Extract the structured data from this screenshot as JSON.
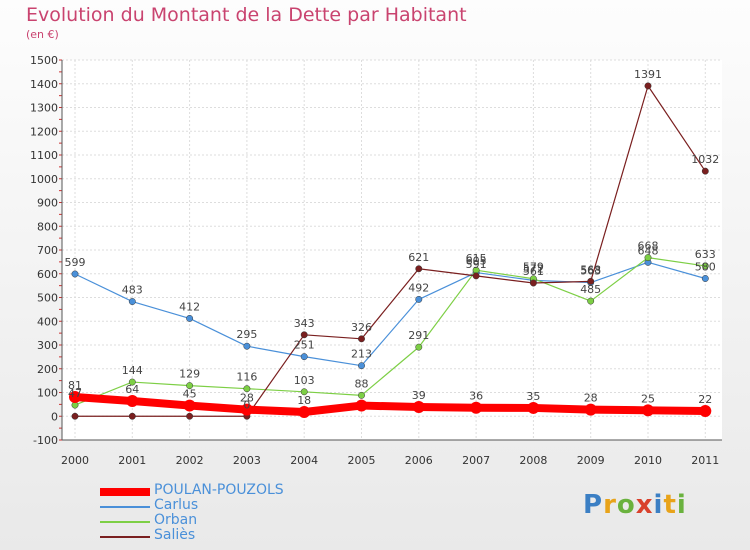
{
  "header": {
    "title": "Evolution du Montant de la Dette par Habitant",
    "subtitle": "(en €)"
  },
  "logo": {
    "letters": [
      "P",
      "r",
      "o",
      "x",
      "i",
      "t",
      "i"
    ],
    "colors": [
      "#3b7fc4",
      "#e8a31a",
      "#6ab23e",
      "#d9412c",
      "#3b7fc4",
      "#e8a31a",
      "#6ab23e"
    ]
  },
  "chart_data": {
    "type": "line",
    "title": "Evolution du Montant de la Dette par Habitant",
    "subtitle": "(en €)",
    "x": [
      "2000",
      "2001",
      "2002",
      "2003",
      "2004",
      "2005",
      "2006",
      "2007",
      "2008",
      "2009",
      "2010",
      "2011"
    ],
    "ylim": [
      -100,
      1500
    ],
    "yticks": [
      "-100",
      "0",
      "100",
      "200",
      "300",
      "400",
      "500",
      "600",
      "700",
      "800",
      "900",
      "1000",
      "1100",
      "1200",
      "1300",
      "1400",
      "1500"
    ],
    "grid": true,
    "legend_position": "bottom-left",
    "series": [
      {
        "name": "POULAN-POUZOLS",
        "color": "#ff0000",
        "values": [
          81,
          64,
          45,
          28,
          18,
          45,
          39,
          36,
          35,
          28,
          25,
          22
        ],
        "labels": [
          "81",
          "64",
          "45",
          "28",
          "18",
          "",
          "39",
          "36",
          "35",
          "28",
          "25",
          "22"
        ]
      },
      {
        "name": "Carlus",
        "color": "#4a90d9",
        "values": [
          599,
          483,
          412,
          295,
          251,
          213,
          492,
          605,
          572,
          563,
          648,
          580
        ],
        "labels": [
          "599",
          "483",
          "412",
          "295",
          "251",
          "213",
          "492",
          "605",
          "572",
          "563",
          "648",
          "580"
        ]
      },
      {
        "name": "Orban",
        "color": "#7dcf45",
        "values": [
          47,
          144,
          129,
          116,
          103,
          88,
          291,
          615,
          579,
          485,
          668,
          633
        ],
        "labels": [
          "47",
          "144",
          "129",
          "116",
          "103",
          "88",
          "291",
          "615",
          "579",
          "485",
          "668",
          "633"
        ]
      },
      {
        "name": "Saliès",
        "color": "#7a1f1f",
        "values": [
          0,
          0,
          0,
          0,
          343,
          326,
          621,
          591,
          561,
          568,
          1391,
          1032
        ],
        "labels": [
          "",
          "",
          "",
          "0",
          "343",
          "326",
          "621",
          "591",
          "561",
          "568",
          "1391",
          "1032"
        ]
      }
    ]
  }
}
